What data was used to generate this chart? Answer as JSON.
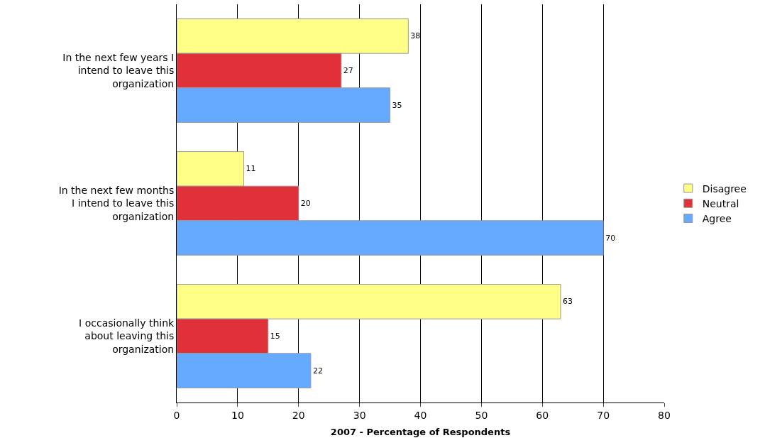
{
  "chart_data": {
    "type": "bar",
    "orientation": "horizontal",
    "xlabel": "2007 - Percentage of Respondents",
    "categories": [
      "In the next few years I intend to leave this organization",
      "In the next few months I intend to leave this organization",
      "I occasionally think about leaving this organization"
    ],
    "series": [
      {
        "name": "Disagree",
        "color": "#ffff88",
        "values": [
          38,
          11,
          63
        ]
      },
      {
        "name": "Neutral",
        "color": "#e0303a",
        "values": [
          27,
          20,
          15
        ]
      },
      {
        "name": "Agree",
        "color": "#66aaff",
        "values": [
          35,
          70,
          22
        ]
      }
    ],
    "xlim": [
      0,
      80
    ],
    "xticks": [
      0,
      10,
      20,
      30,
      40,
      50,
      60,
      70,
      80
    ],
    "grid": "x",
    "legend": "right",
    "data_labels": true
  }
}
